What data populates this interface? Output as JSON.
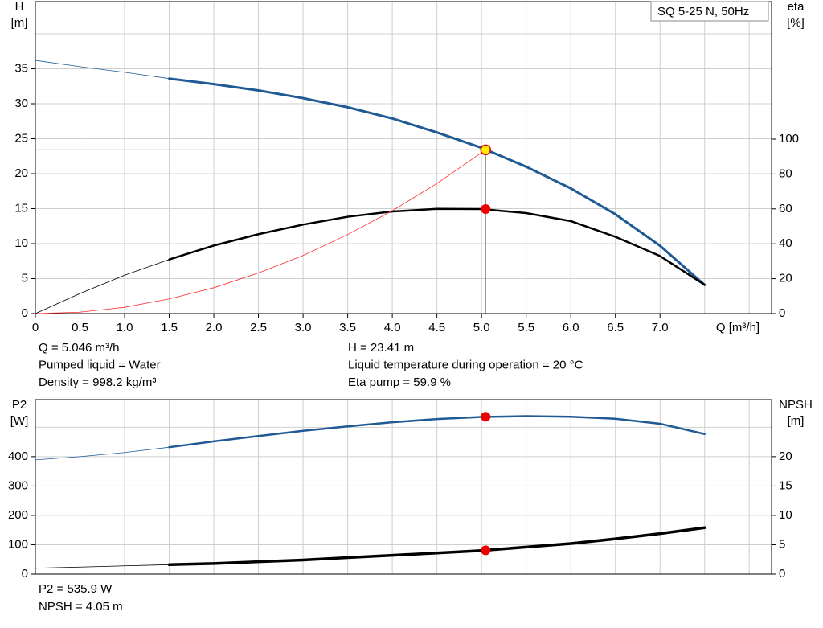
{
  "chart_data": [
    {
      "type": "line",
      "title": "SQ 5-25 N, 50Hz",
      "ylabel": [
        "H",
        "[m]"
      ],
      "y2label": [
        "eta",
        "[%]"
      ],
      "xlabel": "Q [m³/h]",
      "xlim": [
        0,
        8.25
      ],
      "ylim": [
        0,
        44.6
      ],
      "y2lim": [
        0,
        178.8
      ],
      "xticks": [
        0,
        0.5,
        {
          "value": 1,
          "label": "1.0"
        },
        1.5,
        {
          "value": 2,
          "label": "2.0"
        },
        2.5,
        {
          "value": 3,
          "label": "3.0"
        },
        3.5,
        {
          "value": 4,
          "label": "4.0"
        },
        4.5,
        {
          "value": 5,
          "label": "5.0"
        },
        5.5,
        {
          "value": 6,
          "label": "6.0"
        },
        6.5,
        {
          "value": 7,
          "label": "7.0"
        }
      ],
      "xgrid": [
        0,
        0.5,
        1,
        1.5,
        2,
        2.5,
        3,
        3.5,
        4,
        4.5,
        5,
        5.5,
        6,
        6.5,
        7,
        7.5,
        8
      ],
      "yticks": [
        0,
        5,
        10,
        15,
        20,
        25,
        30,
        35
      ],
      "ygrid": [
        0,
        5,
        10,
        15,
        20,
        25,
        30,
        35,
        40
      ],
      "y2ticks": [
        0,
        20,
        40,
        60,
        80,
        100
      ],
      "grid": true,
      "x": [
        0,
        0.5,
        1,
        1.5,
        2,
        2.5,
        3,
        3.5,
        4,
        4.5,
        5,
        5.5,
        6,
        6.5,
        7,
        7.5
      ],
      "series": [
        {
          "color": "#1f5a94",
          "width": 3,
          "emphasis_from": 1.5,
          "axis": "y",
          "values": [
            36.2,
            35.3,
            34.5,
            33.6,
            32.8,
            31.9,
            30.8,
            29.5,
            27.9,
            25.9,
            23.7,
            21.0,
            17.9,
            14.2,
            9.7,
            4.1
          ]
        },
        {
          "color": "#000000",
          "width": 2.5,
          "emphasis_from": 1.5,
          "axis": "y2",
          "values": [
            0,
            11.5,
            22,
            31,
            39,
            45.5,
            51,
            55.5,
            58.5,
            60,
            59.9,
            57.6,
            53,
            44,
            33,
            16.5
          ]
        },
        {
          "color": "#ff2a2a",
          "width": 0.8,
          "axis": "y",
          "x": [
            0,
            0.5,
            1,
            1.5,
            2,
            2.5,
            3,
            3.5,
            4,
            4.5,
            5.046
          ],
          "values": [
            0,
            0.2,
            0.9,
            2.1,
            3.7,
            5.8,
            8.3,
            11.3,
            14.7,
            18.6,
            23.41
          ]
        }
      ],
      "point": {
        "x": 5.046,
        "y": 23.41,
        "y2": 59.9
      },
      "notes": [
        [
          "Q = 5.046 m³/h",
          "Pumped liquid = Water",
          "Density = 998.2 kg/m³"
        ],
        [
          "H = 23.41 m",
          "Liquid temperature during operation = 20 °C",
          "Eta pump = 59.9 %"
        ]
      ]
    },
    {
      "type": "line",
      "ylabel": [
        "P2",
        "[W]"
      ],
      "y2label": [
        "NPSH",
        "[m]"
      ],
      "xlim": [
        0,
        8.25
      ],
      "ylim": [
        0,
        594
      ],
      "y2lim": [
        0,
        29.7
      ],
      "xgrid": [
        0,
        0.5,
        1,
        1.5,
        2,
        2.5,
        3,
        3.5,
        4,
        4.5,
        5,
        5.5,
        6,
        6.5,
        7,
        7.5,
        8
      ],
      "yticks": [
        0,
        100,
        200,
        300,
        400
      ],
      "ygrid": [
        0,
        100,
        200,
        300,
        400,
        500
      ],
      "y2ticks": [
        0,
        5,
        10,
        15,
        20
      ],
      "grid": true,
      "x": [
        0,
        0.5,
        1,
        1.5,
        2,
        2.5,
        3,
        3.5,
        4,
        4.5,
        5,
        5.5,
        6,
        6.5,
        7,
        7.5
      ],
      "series": [
        {
          "color": "#1f5a94",
          "width": 2.5,
          "emphasis_from": 1.5,
          "axis": "y",
          "values": [
            389,
            400,
            414,
            432,
            452,
            470,
            488,
            503,
            517,
            528,
            535,
            538,
            536,
            529,
            512,
            477
          ]
        },
        {
          "color": "#000000",
          "width": 3.5,
          "emphasis_from": 1.5,
          "axis": "y2",
          "values": [
            1.0,
            1.2,
            1.4,
            1.6,
            1.8,
            2.1,
            2.4,
            2.8,
            3.2,
            3.6,
            4.0,
            4.6,
            5.2,
            6.0,
            6.9,
            7.9
          ]
        }
      ],
      "point": {
        "x": 5.046,
        "y": 535.9,
        "y2": 4.05
      },
      "notes": [
        [
          "P2 = 535.9 W",
          "NPSH = 4.05 m"
        ]
      ]
    }
  ]
}
